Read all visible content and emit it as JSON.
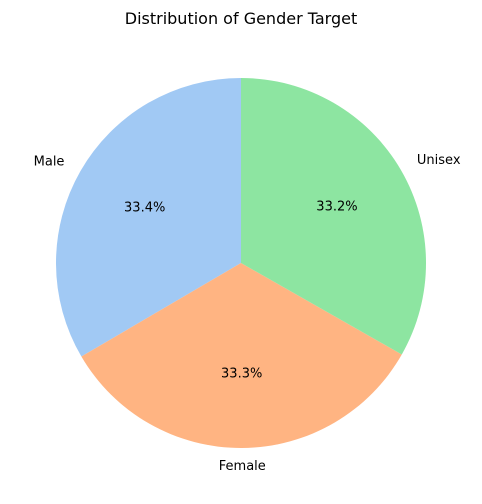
{
  "chart_data": {
    "type": "pie",
    "title": "Distribution of Gender Target",
    "labels": [
      "Male",
      "Female",
      "Unisex"
    ],
    "values": [
      33.4,
      33.3,
      33.2
    ],
    "value_labels": [
      "33.4%",
      "33.3%",
      "33.2%"
    ],
    "colors": [
      "#a1c9f4",
      "#ffb482",
      "#8de5a1"
    ],
    "start_angle_deg": 90,
    "direction": "counterclockwise"
  }
}
